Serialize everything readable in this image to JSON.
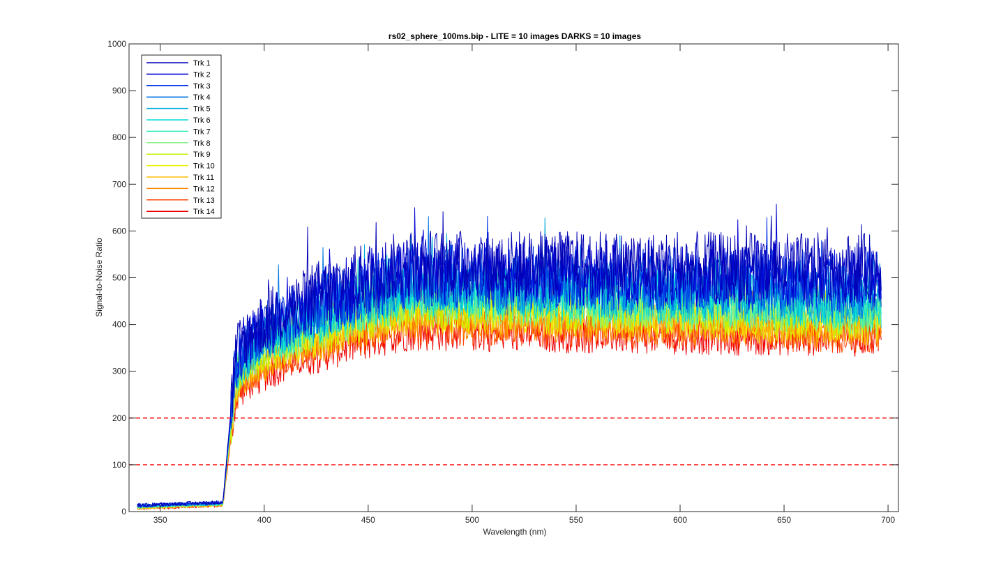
{
  "chart_data": {
    "type": "line",
    "title": "rs02_sphere_100ms.bip - LITE =  10 images  DARKS = 10 images",
    "xlabel": "Wavelength (nm)",
    "ylabel": "Signal-to-Noise Ratio",
    "xlim": [
      335,
      705
    ],
    "ylim": [
      0,
      1000
    ],
    "xticks": [
      350,
      400,
      450,
      500,
      550,
      600,
      650,
      700
    ],
    "yticks": [
      0,
      100,
      200,
      300,
      400,
      500,
      600,
      700,
      800,
      900,
      1000
    ],
    "x_range": [
      339,
      697
    ],
    "grid": false,
    "legend_position": "top-left",
    "reference_lines": [
      {
        "y": 200,
        "color": "#ff0000",
        "style": "dashed"
      },
      {
        "y": 100,
        "color": "#ff0000",
        "style": "dashed"
      }
    ],
    "series": [
      {
        "name": "Trk 1",
        "color": "#0000b4",
        "onset_level": 14,
        "plateau_level": 530,
        "end_level": 520,
        "noise": 75
      },
      {
        "name": "Trk 2",
        "color": "#0000d2",
        "onset_level": 13,
        "plateau_level": 515,
        "end_level": 505,
        "noise": 72
      },
      {
        "name": "Trk 3",
        "color": "#0033e6",
        "onset_level": 13,
        "plateau_level": 505,
        "end_level": 490,
        "noise": 68
      },
      {
        "name": "Trk 4",
        "color": "#0077e6",
        "onset_level": 12,
        "plateau_level": 495,
        "end_level": 475,
        "noise": 64
      },
      {
        "name": "Trk 5",
        "color": "#00aadc",
        "onset_level": 12,
        "plateau_level": 485,
        "end_level": 460,
        "noise": 60
      },
      {
        "name": "Trk 6",
        "color": "#00dcdc",
        "onset_level": 11,
        "plateau_level": 475,
        "end_level": 450,
        "noise": 58
      },
      {
        "name": "Trk 7",
        "color": "#33eebb",
        "onset_level": 11,
        "plateau_level": 465,
        "end_level": 440,
        "noise": 56
      },
      {
        "name": "Trk 8",
        "color": "#88f088",
        "onset_level": 10,
        "plateau_level": 455,
        "end_level": 430,
        "noise": 54
      },
      {
        "name": "Trk 9",
        "color": "#c2f000",
        "onset_level": 10,
        "plateau_level": 445,
        "end_level": 420,
        "noise": 52
      },
      {
        "name": "Trk 10",
        "color": "#eef000",
        "onset_level": 9,
        "plateau_level": 435,
        "end_level": 410,
        "noise": 50
      },
      {
        "name": "Trk 11",
        "color": "#ffbb00",
        "onset_level": 9,
        "plateau_level": 425,
        "end_level": 400,
        "noise": 48
      },
      {
        "name": "Trk 12",
        "color": "#ff8800",
        "onset_level": 8,
        "plateau_level": 415,
        "end_level": 392,
        "noise": 46
      },
      {
        "name": "Trk 13",
        "color": "#ff4400",
        "onset_level": 8,
        "plateau_level": 400,
        "end_level": 382,
        "noise": 44
      },
      {
        "name": "Trk 14",
        "color": "#ee0000",
        "onset_level": 7,
        "plateau_level": 385,
        "end_level": 372,
        "noise": 42
      }
    ]
  }
}
